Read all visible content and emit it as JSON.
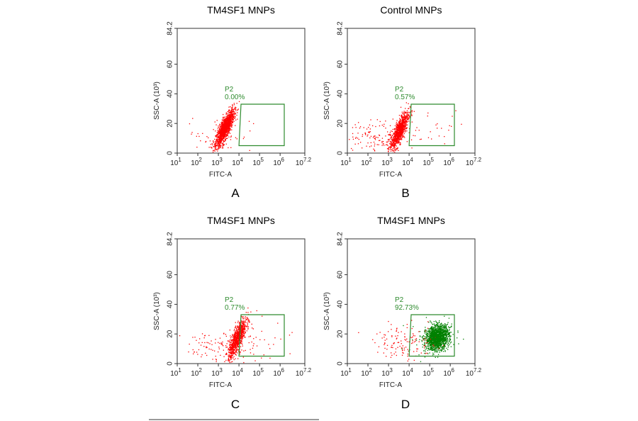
{
  "chart_data": [
    {
      "type": "scatter",
      "panel_letter": "A",
      "title": "TM4SF1 MNPs",
      "xlabel": "FITC-A",
      "ylabel": "SSC-A (10³)",
      "x_scale": "log10",
      "xlim": [
        1,
        7.2
      ],
      "ylim": [
        0,
        84.2
      ],
      "x_ticks": [
        {
          "base": "10",
          "exp": "1"
        },
        {
          "base": "10",
          "exp": "2"
        },
        {
          "base": "10",
          "exp": "3"
        },
        {
          "base": "10",
          "exp": "4"
        },
        {
          "base": "10",
          "exp": "5"
        },
        {
          "base": "10",
          "exp": "6"
        },
        {
          "base": "10",
          "exp": "7.2"
        }
      ],
      "y_ticks": [
        "0",
        "20",
        "40",
        "60",
        "84.2"
      ],
      "gate": {
        "name": "P2",
        "percent": "0.00%",
        "polygon": [
          [
            4.1,
            33
          ],
          [
            6.2,
            33
          ],
          [
            6.2,
            5
          ],
          [
            4.0,
            5
          ]
        ],
        "color": "#2e8b2e"
      },
      "populations": [
        {
          "color": "#ff0000",
          "count": 1400,
          "cx": 3.3,
          "cy": 17,
          "spread": [
            0.22,
            3.5
          ],
          "slope": 22
        },
        {
          "color": "#ff0000",
          "count": 60,
          "cx": 3.0,
          "cy": 13,
          "spread": [
            0.8,
            6
          ],
          "slope": 0
        }
      ]
    },
    {
      "type": "scatter",
      "panel_letter": "B",
      "title": "Control MNPs",
      "xlabel": "FITC-A",
      "ylabel": "SSC-A (10³)",
      "x_scale": "log10",
      "xlim": [
        1,
        7.2
      ],
      "ylim": [
        0,
        84.2
      ],
      "x_ticks": [
        {
          "base": "10",
          "exp": "1"
        },
        {
          "base": "10",
          "exp": "2"
        },
        {
          "base": "10",
          "exp": "3"
        },
        {
          "base": "10",
          "exp": "4"
        },
        {
          "base": "10",
          "exp": "5"
        },
        {
          "base": "10",
          "exp": "6"
        },
        {
          "base": "10",
          "exp": "7.2"
        }
      ],
      "y_ticks": [
        "0",
        "20",
        "40",
        "60",
        "84.2"
      ],
      "gate": {
        "name": "P2",
        "percent": "0.57%",
        "polygon": [
          [
            4.1,
            33
          ],
          [
            6.2,
            33
          ],
          [
            6.2,
            5
          ],
          [
            4.0,
            5
          ]
        ],
        "color": "#2e8b2e"
      },
      "populations": [
        {
          "color": "#ff0000",
          "count": 900,
          "cx": 3.5,
          "cy": 15,
          "spread": [
            0.22,
            4
          ],
          "slope": 24
        },
        {
          "color": "#ff0000",
          "count": 140,
          "cx": 2.6,
          "cy": 12,
          "spread": [
            0.9,
            5
          ],
          "slope": 0
        },
        {
          "color": "#ff0000",
          "count": 25,
          "cx": 5.3,
          "cy": 16,
          "spread": [
            0.9,
            7
          ],
          "slope": 0
        }
      ]
    },
    {
      "type": "scatter",
      "panel_letter": "C",
      "title": "TM4SF1 MNPs",
      "xlabel": "FITC-A",
      "ylabel": "SSC-A (10³)",
      "x_scale": "log10",
      "xlim": [
        1,
        7.2
      ],
      "ylim": [
        0,
        84.2
      ],
      "x_ticks": [
        {
          "base": "10",
          "exp": "1"
        },
        {
          "base": "10",
          "exp": "2"
        },
        {
          "base": "10",
          "exp": "3"
        },
        {
          "base": "10",
          "exp": "4"
        },
        {
          "base": "10",
          "exp": "5"
        },
        {
          "base": "10",
          "exp": "6"
        },
        {
          "base": "10",
          "exp": "7.2"
        }
      ],
      "y_ticks": [
        "0",
        "20",
        "40",
        "60",
        "84.2"
      ],
      "gate": {
        "name": "P2",
        "percent": "0.77%",
        "polygon": [
          [
            4.1,
            33
          ],
          [
            6.2,
            33
          ],
          [
            6.2,
            5
          ],
          [
            4.0,
            5
          ]
        ],
        "color": "#2e8b2e"
      },
      "populations": [
        {
          "color": "#ff0000",
          "count": 900,
          "cx": 3.9,
          "cy": 17,
          "spread": [
            0.22,
            4
          ],
          "slope": 24
        },
        {
          "color": "#ff0000",
          "count": 120,
          "cx": 3.0,
          "cy": 11,
          "spread": [
            0.9,
            6
          ],
          "slope": 0
        },
        {
          "color": "#ff0000",
          "count": 25,
          "cx": 5.5,
          "cy": 15,
          "spread": [
            0.8,
            7
          ],
          "slope": 0
        }
      ]
    },
    {
      "type": "scatter",
      "panel_letter": "D",
      "title": "TM4SF1 MNPs",
      "xlabel": "FITC-A",
      "ylabel": "SSC-A (10³)",
      "x_scale": "log10",
      "xlim": [
        1,
        7.2
      ],
      "ylim": [
        0,
        84.2
      ],
      "x_ticks": [
        {
          "base": "10",
          "exp": "1"
        },
        {
          "base": "10",
          "exp": "2"
        },
        {
          "base": "10",
          "exp": "3"
        },
        {
          "base": "10",
          "exp": "4"
        },
        {
          "base": "10",
          "exp": "5"
        },
        {
          "base": "10",
          "exp": "6"
        },
        {
          "base": "10",
          "exp": "7.2"
        }
      ],
      "y_ticks": [
        "0",
        "20",
        "40",
        "60",
        "84.2"
      ],
      "gate": {
        "name": "P2",
        "percent": "92.73%",
        "polygon": [
          [
            4.1,
            33
          ],
          [
            6.2,
            33
          ],
          [
            6.2,
            5
          ],
          [
            4.0,
            5
          ]
        ],
        "color": "#2e8b2e"
      },
      "populations": [
        {
          "color": "#008000",
          "count": 1500,
          "cx": 5.35,
          "cy": 18,
          "spread": [
            0.28,
            4
          ],
          "slope": 3
        },
        {
          "color": "#ff0000",
          "count": 130,
          "cx": 3.8,
          "cy": 14,
          "spread": [
            0.75,
            6
          ],
          "slope": 0
        },
        {
          "color": "#008000",
          "count": 60,
          "cx": 5.2,
          "cy": 16,
          "spread": [
            0.8,
            6
          ],
          "slope": 0
        }
      ]
    }
  ]
}
